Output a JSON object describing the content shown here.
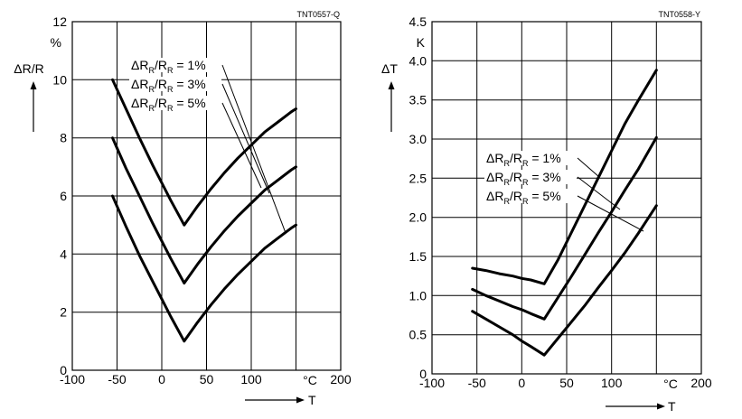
{
  "chart_data": [
    {
      "type": "line",
      "ref_code": "TNT0557-Q",
      "ylabel": "ΔR/R",
      "yunit": "%",
      "xlabel": "T",
      "xunit": "°C",
      "xlim": [
        -100,
        200
      ],
      "ylim": [
        0,
        12
      ],
      "xticks": [
        -100,
        -50,
        0,
        50,
        100,
        200
      ],
      "yticks": [
        0,
        2,
        4,
        6,
        8,
        10,
        12
      ],
      "grid": true,
      "legend": [
        {
          "prefix": "ΔR",
          "sub1": "R",
          "mid": "/R",
          "sub2": "R",
          "suffix": " = 1%"
        },
        {
          "prefix": "ΔR",
          "sub1": "R",
          "mid": "/R",
          "sub2": "R",
          "suffix": " = 3%"
        },
        {
          "prefix": "ΔR",
          "sub1": "R",
          "mid": "/R",
          "sub2": "R",
          "suffix": " = 5%"
        }
      ],
      "series": [
        {
          "name": "ΔR_R/R_R = 1%",
          "x": [
            -55,
            -40,
            -25,
            -10,
            0,
            10,
            25,
            40,
            55,
            70,
            85,
            100,
            115,
            130,
            145,
            150
          ],
          "y": [
            10.0,
            9.0,
            8.0,
            7.05,
            6.45,
            5.85,
            5.0,
            5.65,
            6.25,
            6.8,
            7.3,
            7.75,
            8.2,
            8.55,
            8.9,
            9.0
          ]
        },
        {
          "name": "ΔR_R/R_R = 3%",
          "x": [
            -55,
            -40,
            -25,
            -10,
            0,
            10,
            25,
            40,
            55,
            70,
            85,
            100,
            115,
            130,
            145,
            150
          ],
          "y": [
            8.0,
            6.95,
            6.0,
            5.05,
            4.45,
            3.85,
            3.0,
            3.65,
            4.25,
            4.8,
            5.3,
            5.75,
            6.2,
            6.55,
            6.9,
            7.0
          ]
        },
        {
          "name": "ΔR_R/R_R = 5%",
          "x": [
            -55,
            -40,
            -25,
            -10,
            0,
            10,
            25,
            40,
            55,
            70,
            85,
            100,
            115,
            130,
            145,
            150
          ],
          "y": [
            6.0,
            4.95,
            3.95,
            3.05,
            2.45,
            1.85,
            1.0,
            1.65,
            2.25,
            2.8,
            3.3,
            3.75,
            4.2,
            4.55,
            4.9,
            5.0
          ]
        }
      ]
    },
    {
      "type": "line",
      "ref_code": "TNT0558-Y",
      "ylabel": "ΔT",
      "yunit": "K",
      "xlabel": "T",
      "xunit": "°C",
      "xlim": [
        -100,
        200
      ],
      "ylim": [
        0,
        4.5
      ],
      "xticks": [
        -100,
        -50,
        0,
        50,
        100,
        200
      ],
      "yticks": [
        "0",
        "0.5",
        "1.0",
        "1.5",
        "2.0",
        "2.5",
        "3.0",
        "3.5",
        "4.0",
        "4.5"
      ],
      "grid": true,
      "legend": [
        {
          "prefix": "ΔR",
          "sub1": "R",
          "mid": "/R",
          "sub2": "R",
          "suffix": " = 1%"
        },
        {
          "prefix": "ΔR",
          "sub1": "R",
          "mid": "/R",
          "sub2": "R",
          "suffix": " = 3%"
        },
        {
          "prefix": "ΔR",
          "sub1": "R",
          "mid": "/R",
          "sub2": "R",
          "suffix": " = 5%"
        }
      ],
      "series": [
        {
          "name": "ΔR_R/R_R = 1%",
          "x": [
            -55,
            -40,
            -25,
            -10,
            0,
            10,
            25,
            40,
            55,
            70,
            85,
            100,
            115,
            130,
            150
          ],
          "y": [
            1.35,
            1.32,
            1.28,
            1.25,
            1.22,
            1.2,
            1.15,
            1.45,
            1.8,
            2.15,
            2.5,
            2.85,
            3.2,
            3.5,
            3.88
          ]
        },
        {
          "name": "ΔR_R/R_R = 3%",
          "x": [
            -55,
            -40,
            -25,
            -10,
            0,
            10,
            25,
            40,
            55,
            70,
            85,
            100,
            115,
            130,
            150
          ],
          "y": [
            1.08,
            1.0,
            0.93,
            0.86,
            0.82,
            0.77,
            0.7,
            0.97,
            1.24,
            1.52,
            1.8,
            2.07,
            2.35,
            2.62,
            3.02
          ]
        },
        {
          "name": "ΔR_R/R_R = 5%",
          "x": [
            -55,
            -40,
            -25,
            -10,
            0,
            10,
            25,
            40,
            55,
            70,
            85,
            100,
            115,
            130,
            150
          ],
          "y": [
            0.8,
            0.7,
            0.6,
            0.5,
            0.42,
            0.35,
            0.24,
            0.45,
            0.66,
            0.87,
            1.1,
            1.32,
            1.55,
            1.8,
            2.15
          ]
        }
      ]
    }
  ]
}
